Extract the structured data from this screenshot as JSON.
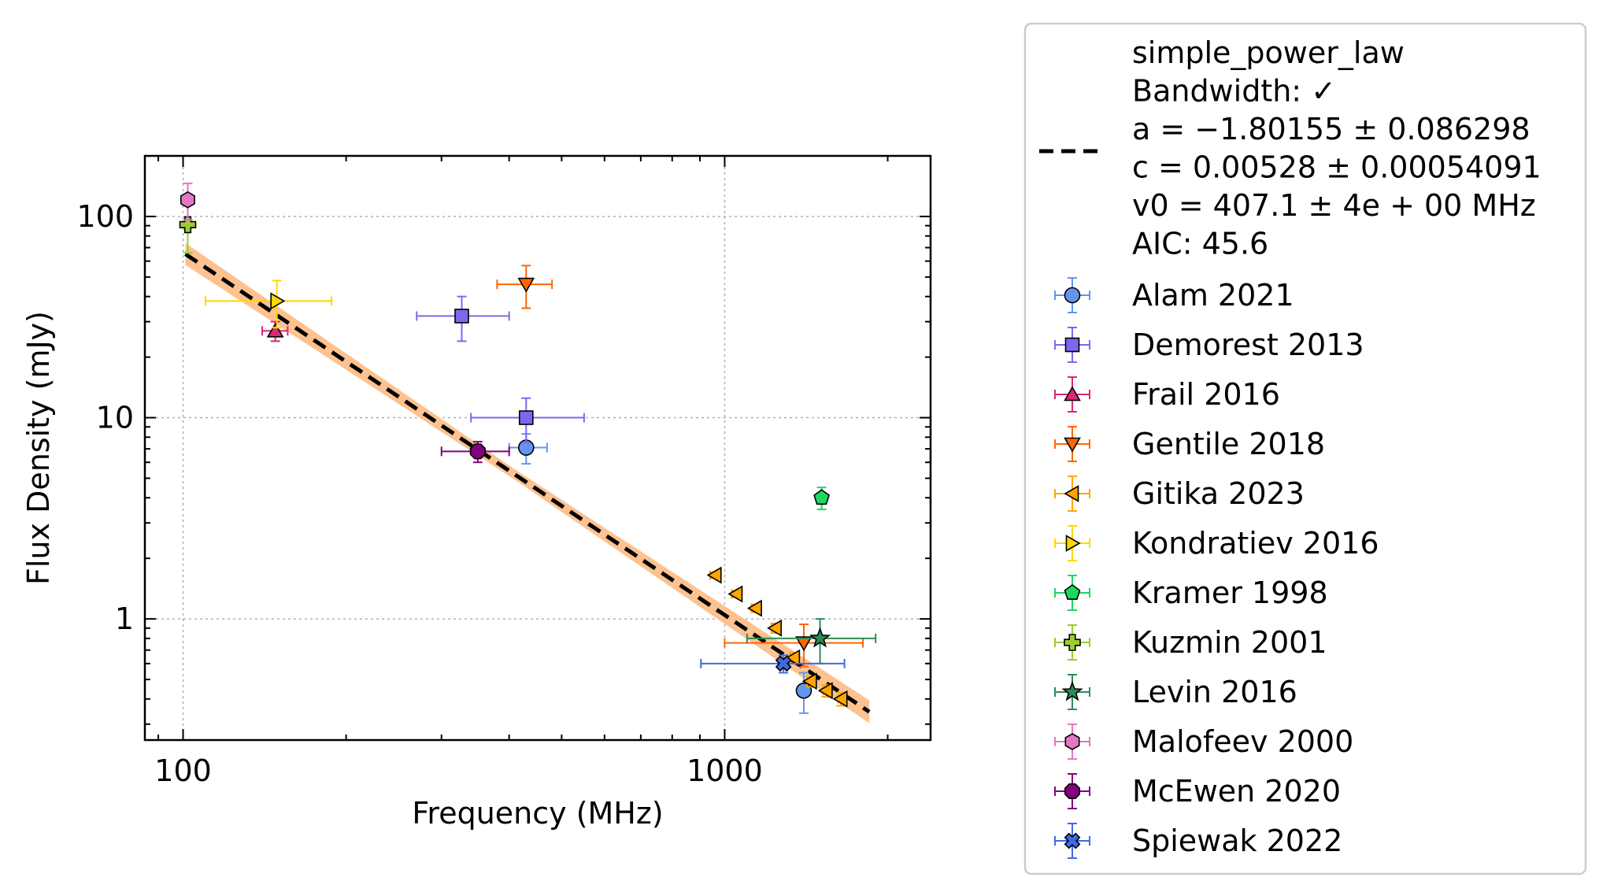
{
  "chart_data": {
    "type": "scatter",
    "title": "",
    "xlabel": "Frequency (MHz)",
    "ylabel": "Flux Density (mJy)",
    "xscale": "log",
    "yscale": "log",
    "xlim": [
      85,
      2400
    ],
    "ylim": [
      0.25,
      200
    ],
    "xticks": [
      {
        "value": 100,
        "label": "100"
      },
      {
        "value": 1000,
        "label": "1000"
      }
    ],
    "yticks": [
      {
        "value": 1,
        "label": "1"
      },
      {
        "value": 10,
        "label": "10"
      },
      {
        "value": 100,
        "label": "100"
      }
    ],
    "grid": true,
    "legend_position": "outside-right",
    "fit": {
      "name": "simple_power_law",
      "lines": [
        "simple_power_law",
        "Bandwidth: ✓",
        "a = −1.80155 ± 0.086298",
        "c = 0.00528 ± 0.00054091",
        "v0 = 407.1 ± 4e + 00 MHz",
        "AIC: 45.6"
      ],
      "a": -1.80155,
      "a_err": 0.086298,
      "c": 0.00528,
      "c_err": 0.00054091,
      "v0": 407.1,
      "x_range": [
        101,
        1850
      ],
      "color": "#000000",
      "band_color": "#fdbb84"
    },
    "series": [
      {
        "name": "Alam 2021",
        "marker": "circle",
        "color": "#6495ED",
        "points": [
          {
            "x": 430,
            "y": 7.1,
            "xerr": [
              30,
              40
            ],
            "yerr": [
              1.2,
              1.2
            ]
          },
          {
            "x": 1400,
            "y": 0.44,
            "xerr": [
              0,
              0
            ],
            "yerr": [
              0.1,
              0.1
            ]
          }
        ]
      },
      {
        "name": "Demorest 2013",
        "marker": "square",
        "color": "#7B68EE",
        "points": [
          {
            "x": 327,
            "y": 32,
            "xerr": [
              57,
              73
            ],
            "yerr": [
              8,
              8
            ]
          },
          {
            "x": 430,
            "y": 10,
            "xerr": [
              90,
              120
            ],
            "yerr": [
              2.5,
              2.5
            ]
          }
        ]
      },
      {
        "name": "Frail 2016",
        "marker": "triangle-up",
        "color": "#DB2777",
        "points": [
          {
            "x": 148,
            "y": 27,
            "xerr": [
              8,
              8
            ],
            "yerr": [
              3,
              3
            ]
          }
        ]
      },
      {
        "name": "Gentile 2018",
        "marker": "triangle-down",
        "color": "#FF6600",
        "points": [
          {
            "x": 430,
            "y": 46,
            "xerr": [
              50,
              50
            ],
            "yerr": [
              11,
              11
            ]
          },
          {
            "x": 1400,
            "y": 0.76,
            "xerr": [
              400,
              400
            ],
            "yerr": [
              0.18,
              0.18
            ]
          }
        ]
      },
      {
        "name": "Gitika 2023",
        "marker": "triangle-left",
        "color": "#FFA500",
        "points": [
          {
            "x": 960,
            "y": 1.65,
            "xerr": [
              20,
              20
            ],
            "yerr": [
              0.05,
              0.05
            ]
          },
          {
            "x": 1050,
            "y": 1.33,
            "xerr": [
              20,
              20
            ],
            "yerr": [
              0.05,
              0.05
            ]
          },
          {
            "x": 1140,
            "y": 1.13,
            "xerr": [
              20,
              20
            ],
            "yerr": [
              0.05,
              0.05
            ]
          },
          {
            "x": 1240,
            "y": 0.9,
            "xerr": [
              20,
              20
            ],
            "yerr": [
              0.05,
              0.05
            ]
          },
          {
            "x": 1340,
            "y": 0.64,
            "xerr": [
              20,
              20
            ],
            "yerr": [
              0.04,
              0.04
            ]
          },
          {
            "x": 1440,
            "y": 0.49,
            "xerr": [
              20,
              20
            ],
            "yerr": [
              0.03,
              0.03
            ]
          },
          {
            "x": 1540,
            "y": 0.44,
            "xerr": [
              20,
              20
            ],
            "yerr": [
              0.03,
              0.03
            ]
          },
          {
            "x": 1640,
            "y": 0.4,
            "xerr": [
              20,
              20
            ],
            "yerr": [
              0.03,
              0.03
            ]
          }
        ]
      },
      {
        "name": "Kondratiev 2016",
        "marker": "triangle-right",
        "color": "#FFD700",
        "points": [
          {
            "x": 149,
            "y": 38,
            "xerr": [
              39,
              39
            ],
            "yerr": [
              10,
              10
            ]
          }
        ]
      },
      {
        "name": "Kramer 1998",
        "marker": "pentagon",
        "color": "#1ED760",
        "points": [
          {
            "x": 1510,
            "y": 4.0,
            "xerr": [
              0,
              0
            ],
            "yerr": [
              0.5,
              0.5
            ]
          }
        ]
      },
      {
        "name": "Kuzmin 2001",
        "marker": "plus",
        "color": "#9ACD32",
        "points": [
          {
            "x": 102,
            "y": 91,
            "xerr": [
              0,
              0
            ],
            "yerr": [
              25,
              25
            ]
          }
        ]
      },
      {
        "name": "Levin 2016",
        "marker": "star",
        "color": "#2E8B57",
        "points": [
          {
            "x": 1500,
            "y": 0.8,
            "xerr": [
              400,
              400
            ],
            "yerr": [
              0.2,
              0.2
            ]
          }
        ]
      },
      {
        "name": "Malofeev 2000",
        "marker": "hexagon",
        "color": "#E377C2",
        "points": [
          {
            "x": 102,
            "y": 121,
            "xerr": [
              0,
              0
            ],
            "yerr": [
              25,
              25
            ]
          }
        ]
      },
      {
        "name": "McEwen 2020",
        "marker": "octagon",
        "color": "#800080",
        "points": [
          {
            "x": 350,
            "y": 6.8,
            "xerr": [
              50,
              50
            ],
            "yerr": [
              0.8,
              0.8
            ]
          }
        ]
      },
      {
        "name": "Spiewak 2022",
        "marker": "x",
        "color": "#4169E1",
        "points": [
          {
            "x": 1284,
            "y": 0.6,
            "xerr": [
              380,
              380
            ],
            "yerr": [
              0.06,
              0.06
            ]
          }
        ]
      }
    ]
  }
}
